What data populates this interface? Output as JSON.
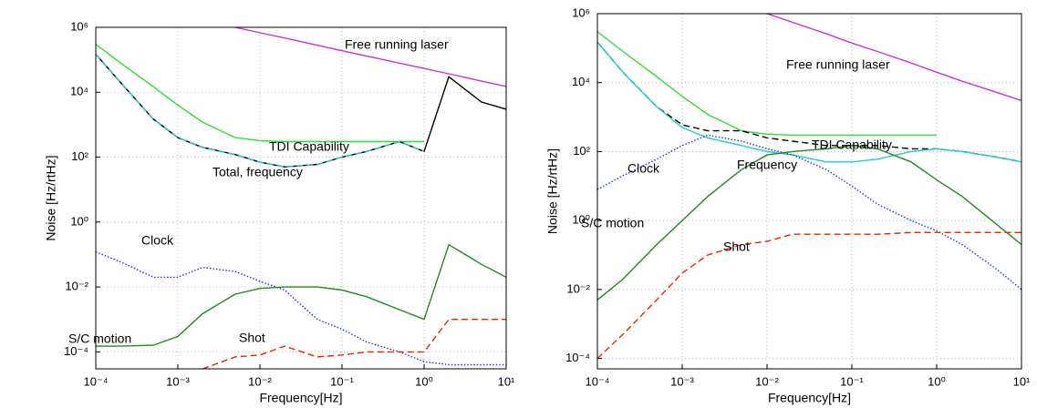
{
  "chart_data": [
    {
      "type": "line",
      "xlabel": "Frequency[Hz]",
      "ylabel": "Noise [Hz/rtHz]",
      "xscale": "log",
      "yscale": "log",
      "grid": true,
      "xlim": [
        0.0001,
        10
      ],
      "ylim": [
        3e-05,
        1000000
      ],
      "xticks": [
        {
          "value": 0.0001,
          "label": "10⁻⁴"
        },
        {
          "value": 0.001,
          "label": "10⁻³"
        },
        {
          "value": 0.01,
          "label": "10⁻²"
        },
        {
          "value": 0.1,
          "label": "10⁻¹"
        },
        {
          "value": 1,
          "label": "10⁰"
        },
        {
          "value": 10,
          "label": "10¹"
        }
      ],
      "yticks": [
        {
          "value": 0.0001,
          "label": "10⁻⁴"
        },
        {
          "value": 0.01,
          "label": "10⁻²"
        },
        {
          "value": 1,
          "label": "10⁰"
        },
        {
          "value": 100,
          "label": "10²"
        },
        {
          "value": 10000,
          "label": "10⁴"
        },
        {
          "value": 1000000,
          "label": "10⁶"
        }
      ],
      "x": [
        0.0001,
        0.0002,
        0.0005,
        0.001,
        0.002,
        0.005,
        0.01,
        0.02,
        0.05,
        0.1,
        0.2,
        0.5,
        1,
        2,
        5,
        10
      ],
      "series": [
        {
          "name": "Free running laser",
          "color": "#cc33cc",
          "style": "solid",
          "values": [
            null,
            null,
            null,
            null,
            null,
            1000000,
            680000,
            470000,
            280000,
            190000,
            130000,
            79000,
            54000,
            37000,
            22000,
            15000
          ]
        },
        {
          "name": "TDI Capability",
          "color": "#33dd33",
          "style": "solid",
          "values": [
            300000,
            80000,
            15000,
            4000,
            1200,
            400,
            320,
            300,
            300,
            300,
            300,
            300,
            300,
            null,
            null,
            null
          ]
        },
        {
          "name": "Total, frequency",
          "color": "#000000",
          "style": "solid",
          "values": [
            150000,
            20000,
            1500,
            400,
            200,
            120,
            70,
            50,
            60,
            100,
            150,
            300,
            150,
            30000,
            5000,
            3000
          ]
        },
        {
          "color": "#22cccc",
          "style": "dashed",
          "values": [
            150000,
            20000,
            1500,
            400,
            200,
            120,
            70,
            50,
            60,
            100,
            150,
            300,
            150,
            null,
            null,
            null
          ]
        },
        {
          "name": "Clock",
          "color": "#2233dd",
          "style": "dotted",
          "values": [
            0.12,
            0.06,
            0.02,
            0.02,
            0.04,
            0.03,
            0.015,
            0.008,
            0.001,
            0.0005,
            0.0002,
            0.0001,
            5e-05,
            4e-05,
            4e-05,
            4e-05
          ]
        },
        {
          "name": "S/C motion",
          "color": "#228822",
          "style": "solid",
          "values": [
            0.00015,
            0.00015,
            0.00016,
            0.0003,
            0.0015,
            0.006,
            0.009,
            0.01,
            0.01,
            0.008,
            0.005,
            0.002,
            0.001,
            0.2,
            0.05,
            0.02
          ]
        },
        {
          "name": "Shot",
          "color": "#ee2200",
          "style": "dashed",
          "values": [
            null,
            null,
            null,
            null,
            3e-05,
            7e-05,
            8e-05,
            0.00015,
            7e-05,
            8e-05,
            0.0001,
            0.0001,
            0.0001,
            0.001,
            0.001,
            0.001
          ]
        }
      ]
    },
    {
      "type": "line",
      "xlabel": "Frequency[Hz]",
      "ylabel": "Noise [Hz/rtHz]",
      "xscale": "log",
      "yscale": "log",
      "grid": true,
      "xlim": [
        0.0001,
        10
      ],
      "ylim": [
        5e-05,
        1000000
      ],
      "xticks": [
        {
          "value": 0.0001,
          "label": "10⁻⁴"
        },
        {
          "value": 0.001,
          "label": "10⁻³"
        },
        {
          "value": 0.01,
          "label": "10⁻²"
        },
        {
          "value": 0.1,
          "label": "10⁻¹"
        },
        {
          "value": 1,
          "label": "10⁰"
        },
        {
          "value": 10,
          "label": "10¹"
        }
      ],
      "yticks": [
        {
          "value": 0.0001,
          "label": "10⁻⁴"
        },
        {
          "value": 0.01,
          "label": "10⁻²"
        },
        {
          "value": 1,
          "label": "10⁰"
        },
        {
          "value": 100,
          "label": "10²"
        },
        {
          "value": 10000,
          "label": "10⁴"
        },
        {
          "value": 1000000,
          "label": "10⁶"
        }
      ],
      "x": [
        0.0001,
        0.0002,
        0.0005,
        0.001,
        0.002,
        0.005,
        0.01,
        0.02,
        0.05,
        0.1,
        0.2,
        0.5,
        1,
        2,
        5,
        10
      ],
      "series": [
        {
          "name": "Free running laser",
          "color": "#cc33cc",
          "style": "solid",
          "values": [
            null,
            null,
            null,
            null,
            null,
            null,
            1000000,
            560000,
            260000,
            140000,
            80000,
            37000,
            20000,
            11000,
            5300,
            3000
          ]
        },
        {
          "name": "TDI Capability",
          "color": "#33dd33",
          "style": "solid",
          "values": [
            300000,
            80000,
            15000,
            4000,
            1200,
            400,
            320,
            300,
            300,
            300,
            300,
            300,
            300,
            null,
            null,
            null
          ]
        },
        {
          "color": "#000000",
          "style": "dashed",
          "values": [
            150000,
            20000,
            2000,
            600,
            400,
            400,
            250,
            200,
            150,
            150,
            150,
            120,
            120,
            100,
            70,
            50
          ]
        },
        {
          "name": "Frequency",
          "color": "#22cccc",
          "style": "solid",
          "values": [
            150000,
            20000,
            2000,
            500,
            250,
            150,
            100,
            80,
            50,
            50,
            60,
            100,
            120,
            100,
            70,
            50
          ]
        },
        {
          "name": "Clock",
          "color": "#2233dd",
          "style": "dotted",
          "values": [
            8,
            20,
            60,
            150,
            300,
            200,
            120,
            80,
            30,
            10,
            3,
            1,
            0.5,
            0.2,
            0.04,
            0.01
          ]
        },
        {
          "name": "S/C motion",
          "color": "#228822",
          "style": "solid",
          "values": [
            0.005,
            0.02,
            0.2,
            1,
            5,
            30,
            80,
            100,
            120,
            150,
            120,
            50,
            15,
            5,
            0.8,
            0.2
          ]
        },
        {
          "name": "Shot",
          "color": "#ee2200",
          "style": "dashed",
          "values": [
            0.0001,
            0.0005,
            0.005,
            0.03,
            0.1,
            0.2,
            0.25,
            0.4,
            0.4,
            0.4,
            0.4,
            0.45,
            0.45,
            0.45,
            0.45,
            0.45
          ]
        }
      ]
    }
  ]
}
